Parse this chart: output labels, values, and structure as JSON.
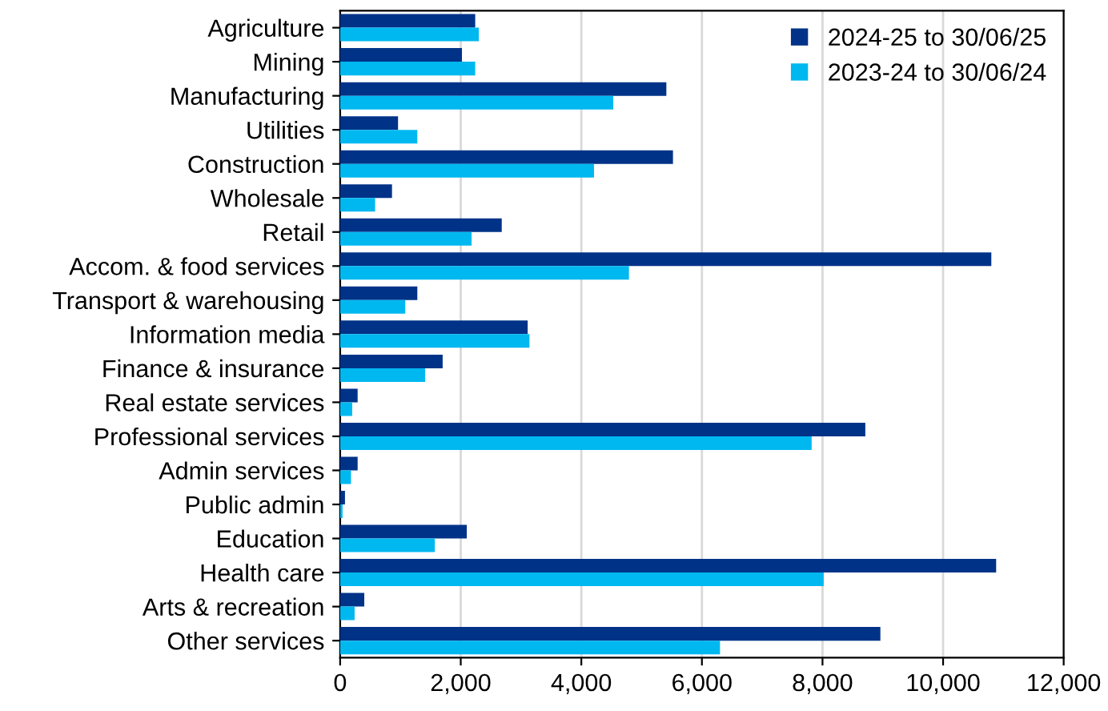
{
  "chart_data": {
    "type": "bar",
    "orientation": "horizontal",
    "categories": [
      "Agriculture",
      "Mining",
      "Manufacturing",
      "Utilities",
      "Construction",
      "Wholesale",
      "Retail",
      "Accom. & food services",
      "Transport & warehousing",
      "Information media",
      "Finance & insurance",
      "Real estate services",
      "Professional services",
      "Admin services",
      "Public admin",
      "Education",
      "Health care",
      "Arts & recreation",
      "Other services"
    ],
    "series": [
      {
        "name": "2024-25 to 30/06/25",
        "color": "#003388",
        "values": [
          2240,
          2020,
          5410,
          960,
          5520,
          860,
          2680,
          10800,
          1280,
          3110,
          1700,
          290,
          8710,
          290,
          80,
          2100,
          10880,
          400,
          8960
        ]
      },
      {
        "name": "2023-24 to 30/06/24",
        "color": "#00b8f0",
        "values": [
          2300,
          2240,
          4530,
          1280,
          4210,
          580,
          2180,
          4790,
          1080,
          3140,
          1410,
          200,
          7820,
          180,
          40,
          1570,
          8020,
          240,
          6300
        ]
      }
    ],
    "xlim": [
      0,
      12000
    ],
    "xticks": [
      {
        "value": 0,
        "label": "0"
      },
      {
        "value": 2000,
        "label": "2,000"
      },
      {
        "value": 4000,
        "label": "4,000"
      },
      {
        "value": 6000,
        "label": "6,000"
      },
      {
        "value": 8000,
        "label": "8,000"
      },
      {
        "value": 10000,
        "label": "10,000"
      },
      {
        "value": 12000,
        "label": "12,000"
      }
    ],
    "grid": "x",
    "legend": "top right"
  }
}
